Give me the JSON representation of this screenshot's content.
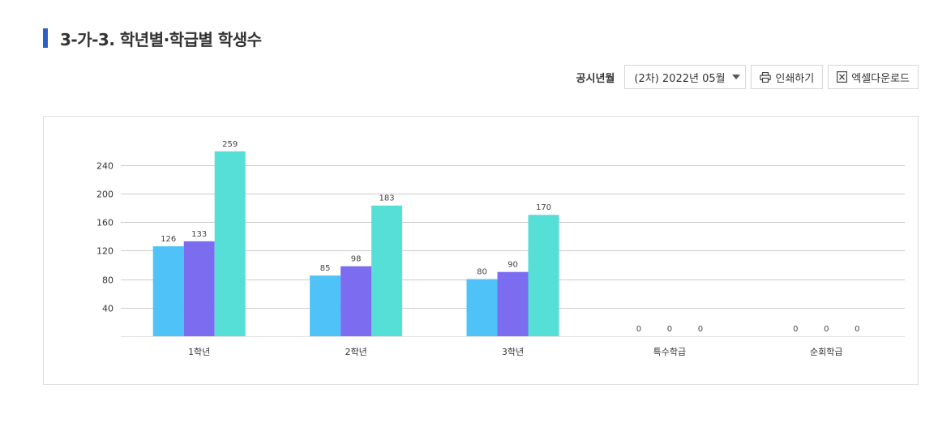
{
  "page": {
    "title": "3-가-3. 학년별·학급별 학생수"
  },
  "toolbar": {
    "pub_label": "공시년월",
    "select_value": "(2차) 2022년 05월",
    "print_label": "인쇄하기",
    "excel_label": "엑셀다운로드",
    "icons": [
      "printer-icon",
      "excel-icon",
      "caret-down-icon"
    ]
  },
  "chart_data": {
    "type": "bar",
    "categories": [
      "1학년",
      "2학년",
      "3학년",
      "특수학급",
      "순회학급"
    ],
    "series": [
      {
        "color": "#4fc3f7",
        "values": [
          126,
          85,
          80,
          0,
          0
        ]
      },
      {
        "color": "#7b6cf0",
        "values": [
          133,
          98,
          90,
          0,
          0
        ]
      },
      {
        "color": "#56dfd6",
        "values": [
          259,
          183,
          170,
          0,
          0
        ]
      }
    ],
    "yticks": [
      40,
      80,
      120,
      160,
      200,
      240
    ],
    "ylim": [
      0,
      260
    ],
    "grid": true,
    "legend": "none"
  }
}
